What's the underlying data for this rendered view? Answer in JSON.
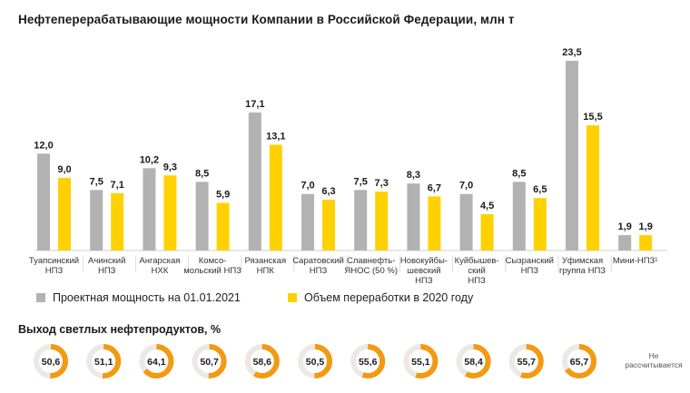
{
  "title": "Нефтеперерабатывающие мощности Компании в Российской Федерации, млн т",
  "chart_data": {
    "type": "bar",
    "title": "Нефтеперерабатывающие мощности Компании в Российской Федерации, млн т",
    "categories": [
      [
        "Туапсинский",
        "НПЗ"
      ],
      [
        "Ачинский",
        "НПЗ"
      ],
      [
        "Ангарская",
        "НХК"
      ],
      [
        "Комсо-",
        "мольский НПЗ"
      ],
      [
        "Рязанская",
        "НПК"
      ],
      [
        "Саратовский",
        "НПЗ"
      ],
      [
        "Славнефть-",
        "ЯНОС (50 %)"
      ],
      [
        "Новокуйбы-",
        "шевский",
        "НПЗ"
      ],
      [
        "Куйбышев-",
        "ский",
        "НПЗ"
      ],
      [
        "Сызранский",
        "НПЗ"
      ],
      [
        "Уфимская",
        "группа НПЗ"
      ],
      [
        "Мини-НПЗ¹"
      ]
    ],
    "series": [
      {
        "name": "Проектная мощность на 01.01.2021",
        "color": "#b2b2b2",
        "values": [
          12.0,
          7.5,
          10.2,
          8.5,
          17.1,
          7.0,
          7.5,
          8.3,
          7.0,
          8.5,
          23.5,
          1.9
        ],
        "labels": [
          "12,0",
          "7,5",
          "10,2",
          "8,5",
          "17,1",
          "7,0",
          "7,5",
          "8,3",
          "7,0",
          "8,5",
          "23,5",
          "1,9"
        ]
      },
      {
        "name": "Объем переработки в 2020 году",
        "color": "#ffd100",
        "values": [
          9.0,
          7.1,
          9.3,
          5.9,
          13.1,
          6.3,
          7.3,
          6.7,
          4.5,
          6.5,
          15.5,
          1.9
        ],
        "labels": [
          "9,0",
          "7,1",
          "9,3",
          "5,9",
          "13,1",
          "6,3",
          "7,3",
          "6,7",
          "4,5",
          "6,5",
          "15,5",
          "1,9"
        ]
      }
    ],
    "ylim": [
      0,
      23.5
    ],
    "grid": false,
    "legend": "bottom-left"
  },
  "light_products": {
    "title": "Выход светлых нефтепродуктов, %",
    "ring_color": "#f29a11",
    "track_color": "#ece9e4",
    "values": [
      50.6,
      51.1,
      64.1,
      50.7,
      58.6,
      50.5,
      55.6,
      55.1,
      58.4,
      55.7,
      65.7
    ],
    "labels": [
      "50,6",
      "51,1",
      "64,1",
      "50,7",
      "58,6",
      "50,5",
      "55,6",
      "55,1",
      "58,4",
      "55,7",
      "65,7"
    ],
    "note": [
      "Не",
      "рассчитывается"
    ]
  }
}
